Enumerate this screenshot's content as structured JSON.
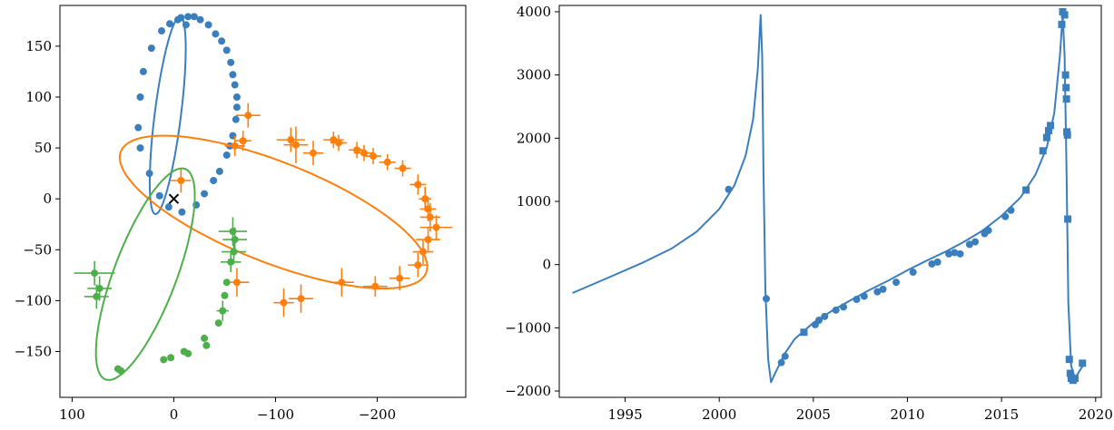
{
  "colors": {
    "blue": "#3a7ebd",
    "orange": "#ff7f0e",
    "green": "#4daf4a",
    "center_marker": "#000000"
  },
  "chart_data": [
    {
      "type": "scatter",
      "title": "",
      "xlabel": "",
      "ylabel": "",
      "xlim": [
        112,
        -287
      ],
      "ylim": [
        -195,
        190
      ],
      "x_axis_inverted": true,
      "xticks": [
        100,
        0,
        -100,
        -200
      ],
      "xtick_labels": [
        "100",
        "0",
        "−100",
        "−200"
      ],
      "yticks": [
        150,
        100,
        50,
        0,
        -50,
        -100,
        -150
      ],
      "ytick_labels": [
        "150",
        "100",
        "50",
        "0",
        "−50",
        "−100",
        "−150"
      ],
      "center": {
        "x": 0,
        "y": 0,
        "marker": "x"
      },
      "series": [
        {
          "color": "blue",
          "orbit": {
            "ex": 6,
            "ey": 82,
            "u1": [
              -13,
              0
            ],
            "u2": [
              -12,
              97
            ]
          },
          "points": [
            {
              "x": -7,
              "y": 178
            },
            {
              "x": -14,
              "y": 179
            },
            {
              "x": -20,
              "y": 179
            },
            {
              "x": -26,
              "y": 176
            },
            {
              "x": -12,
              "y": 171
            },
            {
              "x": -34,
              "y": 171
            },
            {
              "x": -41,
              "y": 162
            },
            {
              "x": -47,
              "y": 155
            },
            {
              "x": -52,
              "y": 146
            },
            {
              "x": -56,
              "y": 134
            },
            {
              "x": -58,
              "y": 122
            },
            {
              "x": -60,
              "y": 112
            },
            {
              "x": -62,
              "y": 100
            },
            {
              "x": -62,
              "y": 90
            },
            {
              "x": -61,
              "y": 78
            },
            {
              "x": -58,
              "y": 62
            },
            {
              "x": -55,
              "y": 52
            },
            {
              "x": -52,
              "y": 43
            },
            {
              "x": -45,
              "y": 27
            },
            {
              "x": -39,
              "y": 18
            },
            {
              "x": -30,
              "y": 5
            },
            {
              "x": -22,
              "y": -6
            },
            {
              "x": -8,
              "y": -13
            },
            {
              "x": 5,
              "y": -8
            },
            {
              "x": 14,
              "y": 3
            },
            {
              "x": 24,
              "y": 25
            },
            {
              "x": 33,
              "y": 50
            },
            {
              "x": 35,
              "y": 70
            },
            {
              "x": 33,
              "y": 100
            },
            {
              "x": 30,
              "y": 125
            },
            {
              "x": 22,
              "y": 148
            },
            {
              "x": 12,
              "y": 165
            },
            {
              "x": 4,
              "y": 172
            },
            {
              "x": -4,
              "y": 176
            }
          ]
        },
        {
          "color": "orange",
          "orbit": {
            "ex": -98,
            "ey": -13,
            "u1": [
              -151,
              -56
            ],
            "u2": [
              -7,
              50
            ]
          },
          "points": [
            {
              "x": -7,
              "y": 18,
              "xerr": 10,
              "yerr": 12
            },
            {
              "x": -60,
              "y": 52,
              "xerr": 10,
              "yerr": 10
            },
            {
              "x": -68,
              "y": 57,
              "xerr": 8,
              "yerr": 10
            },
            {
              "x": -73,
              "y": 82,
              "xerr": 12,
              "yerr": 12
            },
            {
              "x": -115,
              "y": 58,
              "xerr": 14,
              "yerr": 12
            },
            {
              "x": -120,
              "y": 53,
              "xerr": 12,
              "yerr": 18
            },
            {
              "x": -137,
              "y": 45,
              "xerr": 10,
              "yerr": 12
            },
            {
              "x": -157,
              "y": 58,
              "xerr": 10,
              "yerr": 8
            },
            {
              "x": -162,
              "y": 55,
              "xerr": 8,
              "yerr": 8
            },
            {
              "x": -180,
              "y": 48,
              "xerr": 8,
              "yerr": 8
            },
            {
              "x": -187,
              "y": 45,
              "xerr": 10,
              "yerr": 8
            },
            {
              "x": -196,
              "y": 42,
              "xerr": 8,
              "yerr": 8
            },
            {
              "x": -210,
              "y": 36,
              "xerr": 8,
              "yerr": 8
            },
            {
              "x": -225,
              "y": 30,
              "xerr": 8,
              "yerr": 8
            },
            {
              "x": -240,
              "y": 14,
              "xerr": 8,
              "yerr": 10
            },
            {
              "x": -247,
              "y": 0,
              "xerr": 6,
              "yerr": 12
            },
            {
              "x": -250,
              "y": -10,
              "xerr": 8,
              "yerr": 12
            },
            {
              "x": -252,
              "y": -18,
              "xerr": 10,
              "yerr": 14
            },
            {
              "x": -258,
              "y": -28,
              "xerr": 16,
              "yerr": 12
            },
            {
              "x": -250,
              "y": -40,
              "xerr": 12,
              "yerr": 12
            },
            {
              "x": -245,
              "y": -52,
              "xerr": 10,
              "yerr": 12
            },
            {
              "x": -240,
              "y": -65,
              "xerr": 10,
              "yerr": 12
            },
            {
              "x": -222,
              "y": -78,
              "xerr": 10,
              "yerr": 12
            },
            {
              "x": -198,
              "y": -86,
              "xerr": 12,
              "yerr": 10
            },
            {
              "x": -165,
              "y": -82,
              "xerr": 12,
              "yerr": 14
            },
            {
              "x": -125,
              "y": -98,
              "xerr": 12,
              "yerr": 14
            },
            {
              "x": -108,
              "y": -102,
              "xerr": 10,
              "yerr": 14
            },
            {
              "x": -62,
              "y": -82,
              "xerr": 12,
              "yerr": 14
            }
          ]
        },
        {
          "color": "green",
          "orbit": {
            "ex": 28,
            "ey": -74,
            "u1": [
              -29,
              102
            ],
            "u2": [
              39,
              -20
            ]
          },
          "points": [
            {
              "x": 78,
              "y": -73,
              "xerr": 20,
              "yerr": 12
            },
            {
              "x": 73,
              "y": -88,
              "xerr": 12,
              "yerr": 12
            },
            {
              "x": 76,
              "y": -96,
              "xerr": 12,
              "yerr": 12
            },
            {
              "x": 55,
              "y": -167
            },
            {
              "x": 52,
              "y": -169
            },
            {
              "x": 10,
              "y": -158
            },
            {
              "x": 3,
              "y": -156
            },
            {
              "x": -10,
              "y": -150
            },
            {
              "x": -14,
              "y": -152
            },
            {
              "x": -30,
              "y": -137
            },
            {
              "x": -32,
              "y": -144
            },
            {
              "x": -44,
              "y": -122
            },
            {
              "x": -48,
              "y": -110,
              "xerr": 6,
              "yerr": 10
            },
            {
              "x": -50,
              "y": -95
            },
            {
              "x": -52,
              "y": -82
            },
            {
              "x": -56,
              "y": -62,
              "xerr": 10,
              "yerr": 10
            },
            {
              "x": -59,
              "y": -52,
              "xerr": 12,
              "yerr": 12
            },
            {
              "x": -60,
              "y": -40,
              "xerr": 12,
              "yerr": 12
            },
            {
              "x": -58,
              "y": -32,
              "xerr": 14,
              "yerr": 14
            }
          ]
        }
      ]
    },
    {
      "type": "line",
      "title": "",
      "xlabel": "",
      "ylabel": "",
      "xlim": [
        1991.5,
        2020.3
      ],
      "ylim": [
        -2100,
        4100
      ],
      "xticks": [
        1995,
        2000,
        2005,
        2010,
        2015,
        2020
      ],
      "xtick_labels": [
        "1995",
        "2000",
        "2005",
        "2010",
        "2015",
        "2020"
      ],
      "yticks": [
        4000,
        3000,
        2000,
        1000,
        0,
        -1000,
        -2000
      ],
      "ytick_labels": [
        "4000",
        "3000",
        "2000",
        "1000",
        "0",
        "−1000",
        "−2000"
      ],
      "series": [
        {
          "color": "blue",
          "curve": [
            [
              1992.2,
              -450
            ],
            [
              1994,
              -220
            ],
            [
              1996,
              40
            ],
            [
              1997.5,
              260
            ],
            [
              1998.8,
              520
            ],
            [
              2000,
              880
            ],
            [
              2000.8,
              1250
            ],
            [
              2001.4,
              1720
            ],
            [
              2001.8,
              2300
            ],
            [
              2002.05,
              3100
            ],
            [
              2002.2,
              3950
            ],
            [
              2002.28,
              3300
            ],
            [
              2002.35,
              1500
            ],
            [
              2002.45,
              -400
            ],
            [
              2002.6,
              -1500
            ],
            [
              2002.75,
              -1860
            ],
            [
              2003,
              -1700
            ],
            [
              2003.5,
              -1400
            ],
            [
              2004,
              -1180
            ],
            [
              2005,
              -920
            ],
            [
              2006,
              -730
            ],
            [
              2007,
              -560
            ],
            [
              2008,
              -400
            ],
            [
              2009,
              -250
            ],
            [
              2010,
              -90
            ],
            [
              2011,
              60
            ],
            [
              2012,
              200
            ],
            [
              2013,
              360
            ],
            [
              2014,
              540
            ],
            [
              2015,
              770
            ],
            [
              2016,
              1060
            ],
            [
              2016.8,
              1420
            ],
            [
              2017.4,
              1850
            ],
            [
              2017.8,
              2400
            ],
            [
              2018.1,
              3300
            ],
            [
              2018.25,
              3950
            ],
            [
              2018.35,
              3300
            ],
            [
              2018.45,
              1500
            ],
            [
              2018.55,
              -600
            ],
            [
              2018.7,
              -1600
            ],
            [
              2018.9,
              -1800
            ],
            [
              2019.4,
              -1560
            ]
          ],
          "points": [
            {
              "x": 2000.5,
              "y": 1190
            },
            {
              "x": 2002.5,
              "y": -540
            },
            {
              "x": 2003.3,
              "y": -1550
            },
            {
              "x": 2003.5,
              "y": -1450
            },
            {
              "x": 2004.5,
              "y": -1070
            },
            {
              "x": 2005.1,
              "y": -950
            },
            {
              "x": 2005.3,
              "y": -880
            },
            {
              "x": 2005.6,
              "y": -820
            },
            {
              "x": 2006.2,
              "y": -720
            },
            {
              "x": 2006.6,
              "y": -670
            },
            {
              "x": 2007.3,
              "y": -550
            },
            {
              "x": 2007.7,
              "y": -500
            },
            {
              "x": 2008.4,
              "y": -430
            },
            {
              "x": 2008.7,
              "y": -390
            },
            {
              "x": 2009.4,
              "y": -280
            },
            {
              "x": 2010.3,
              "y": -120
            },
            {
              "x": 2011.3,
              "y": 10
            },
            {
              "x": 2011.6,
              "y": 40
            },
            {
              "x": 2012.2,
              "y": 170
            },
            {
              "x": 2012.5,
              "y": 190
            },
            {
              "x": 2012.8,
              "y": 170
            },
            {
              "x": 2013.3,
              "y": 320
            },
            {
              "x": 2013.6,
              "y": 360
            },
            {
              "x": 2014.1,
              "y": 490
            },
            {
              "x": 2014.3,
              "y": 540
            },
            {
              "x": 2015.2,
              "y": 760
            },
            {
              "x": 2015.5,
              "y": 860
            },
            {
              "x": 2016.3,
              "y": 1180
            },
            {
              "x": 2017.2,
              "y": 1800
            },
            {
              "x": 2017.4,
              "y": 2010
            },
            {
              "x": 2017.5,
              "y": 2120
            },
            {
              "x": 2017.6,
              "y": 2200
            },
            {
              "x": 2018.2,
              "y": 3800
            },
            {
              "x": 2018.25,
              "y": 4000
            },
            {
              "x": 2018.35,
              "y": 3950
            },
            {
              "x": 2018.4,
              "y": 3000
            },
            {
              "x": 2018.43,
              "y": 2800
            },
            {
              "x": 2018.45,
              "y": 2620
            },
            {
              "x": 2018.47,
              "y": 2100
            },
            {
              "x": 2018.5,
              "y": 2050
            },
            {
              "x": 2018.52,
              "y": 720
            },
            {
              "x": 2018.6,
              "y": -1500
            },
            {
              "x": 2018.65,
              "y": -1720
            },
            {
              "x": 2018.7,
              "y": -1800
            },
            {
              "x": 2018.8,
              "y": -1830
            },
            {
              "x": 2018.9,
              "y": -1800
            },
            {
              "x": 2019.3,
              "y": -1560
            }
          ]
        }
      ]
    }
  ]
}
